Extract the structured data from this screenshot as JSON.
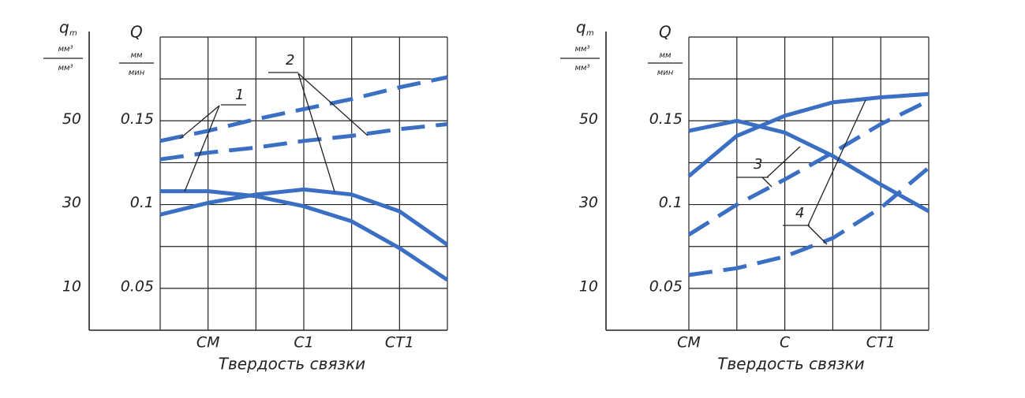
{
  "chart_data": [
    {
      "type": "line",
      "x_label": "Твердость связки",
      "y_label": "Q",
      "y_unit_top": "мм",
      "y_unit_bottom": "мин",
      "y2_label": "q",
      "y2_label_sub": "m",
      "y2_unit_top": "мм³",
      "y2_unit_bottom": "мм³",
      "xlim": [
        0,
        6
      ],
      "xticks": [
        {
          "value": 1,
          "label": "CM"
        },
        {
          "value": 3,
          "label": "C1"
        },
        {
          "value": 5,
          "label": "CT1"
        }
      ],
      "xgrid": [
        0,
        1,
        2,
        3,
        4,
        5,
        6
      ],
      "ylim": [
        0.025,
        0.2
      ],
      "yticks": [
        {
          "value": 0.05,
          "label": "0.05"
        },
        {
          "value": 0.1,
          "label": "0.1"
        },
        {
          "value": 0.15,
          "label": "0.15"
        }
      ],
      "ygrid": [
        0.05,
        0.075,
        0.1,
        0.125,
        0.15,
        0.175,
        0.2
      ],
      "y2lim": [
        0,
        70
      ],
      "y2ticks": [
        10,
        30,
        50
      ],
      "annotations": [
        "1",
        "2"
      ],
      "series": [
        {
          "color": "#3a6fc4",
          "dashed": true,
          "x": [
            0,
            1,
            2,
            3,
            4,
            5,
            6
          ],
          "values": [
            0.138,
            0.144,
            0.151,
            0.157,
            0.163,
            0.17,
            0.176
          ]
        },
        {
          "color": "#3a6fc4",
          "dashed": true,
          "x": [
            0,
            1,
            2,
            3,
            4,
            5,
            6
          ],
          "values": [
            0.127,
            0.131,
            0.134,
            0.138,
            0.141,
            0.145,
            0.148
          ]
        },
        {
          "color": "#3a6fc4",
          "dashed": false,
          "x": [
            0,
            1,
            2,
            3,
            4,
            5,
            6
          ],
          "values": [
            0.108,
            0.108,
            0.105,
            0.099,
            0.09,
            0.074,
            0.055
          ]
        },
        {
          "color": "#3a6fc4",
          "dashed": false,
          "x": [
            0,
            1,
            2,
            3,
            4,
            5,
            6
          ],
          "values": [
            0.094,
            0.101,
            0.106,
            0.109,
            0.106,
            0.096,
            0.076
          ]
        }
      ]
    },
    {
      "type": "line",
      "x_label": "Твердость связки",
      "y_label": "Q",
      "y_unit_top": "мм",
      "y_unit_bottom": "мин",
      "y2_label": "q",
      "y2_label_sub": "m",
      "y2_unit_top": "мм³",
      "y2_unit_bottom": "мм³",
      "xlim": [
        0,
        5
      ],
      "xticks": [
        {
          "value": 0,
          "label": "CM"
        },
        {
          "value": 2,
          "label": "C"
        },
        {
          "value": 4,
          "label": "CT1"
        }
      ],
      "xgrid": [
        0,
        1,
        2,
        3,
        4,
        5
      ],
      "ylim": [
        0.025,
        0.2
      ],
      "yticks": [
        {
          "value": 0.05,
          "label": "0.05"
        },
        {
          "value": 0.1,
          "label": "0.1"
        },
        {
          "value": 0.15,
          "label": "0.15"
        }
      ],
      "ygrid": [
        0.05,
        0.075,
        0.1,
        0.125,
        0.15,
        0.175,
        0.2
      ],
      "y2lim": [
        0,
        70
      ],
      "y2ticks": [
        10,
        30,
        50
      ],
      "annotations": [
        "3",
        "4"
      ],
      "series": [
        {
          "color": "#3a6fc4",
          "dashed": false,
          "x": [
            0,
            1,
            2,
            3,
            4,
            5
          ],
          "values": [
            0.144,
            0.15,
            0.143,
            0.129,
            0.112,
            0.096
          ]
        },
        {
          "color": "#3a6fc4",
          "dashed": false,
          "x": [
            0,
            1,
            2,
            3,
            4,
            5
          ],
          "values": [
            0.117,
            0.141,
            0.153,
            0.161,
            0.164,
            0.166
          ]
        },
        {
          "color": "#3a6fc4",
          "dashed": true,
          "x": [
            0,
            1,
            2,
            3,
            4,
            5
          ],
          "values": [
            0.082,
            0.1,
            0.115,
            0.131,
            0.148,
            0.162
          ]
        },
        {
          "color": "#3a6fc4",
          "dashed": true,
          "x": [
            0,
            1,
            2,
            3,
            4,
            5
          ],
          "values": [
            0.058,
            0.062,
            0.069,
            0.08,
            0.098,
            0.122
          ]
        }
      ]
    }
  ]
}
